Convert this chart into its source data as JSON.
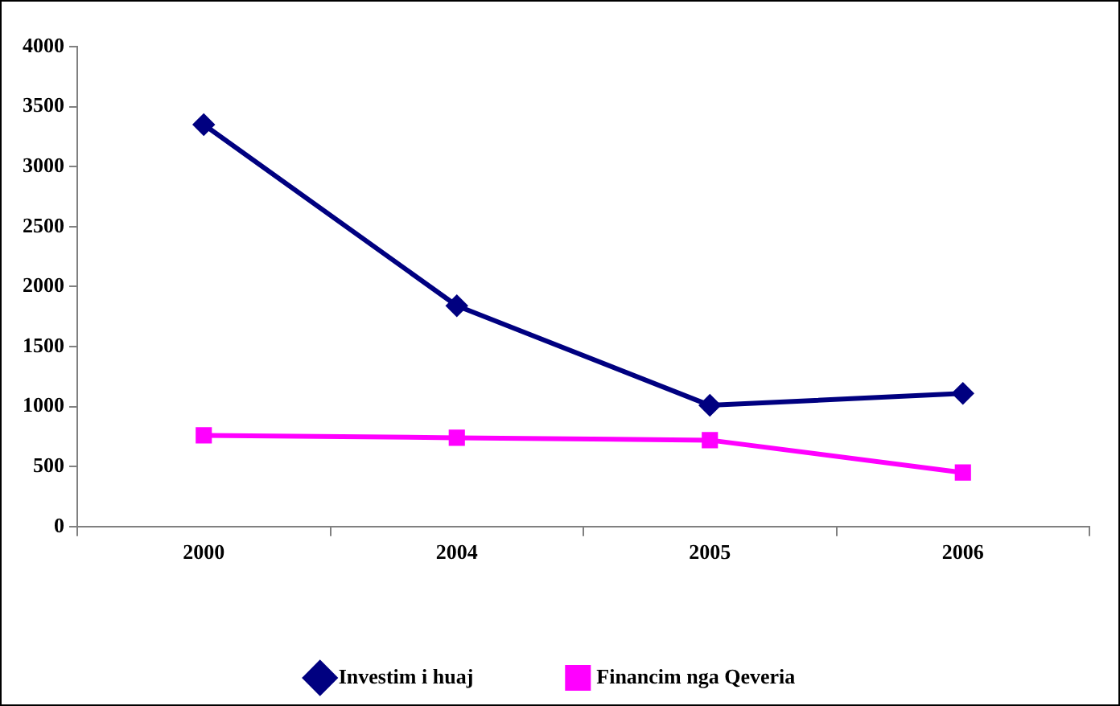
{
  "chart_data": {
    "type": "line",
    "categories": [
      "2000",
      "2004",
      "2005",
      "2006"
    ],
    "series": [
      {
        "name": "Investim i huaj",
        "color": "#000080",
        "marker": "diamond",
        "values": [
          3350,
          1840,
          1010,
          1110
        ]
      },
      {
        "name": "Financim nga Qeveria",
        "color": "#ff00ff",
        "marker": "square",
        "values": [
          760,
          740,
          720,
          450
        ]
      }
    ],
    "ylim": [
      0,
      4000
    ],
    "yticks": [
      0,
      500,
      1000,
      1500,
      2000,
      2500,
      3000,
      3500,
      4000
    ],
    "grid": false,
    "legend": "bottom"
  }
}
